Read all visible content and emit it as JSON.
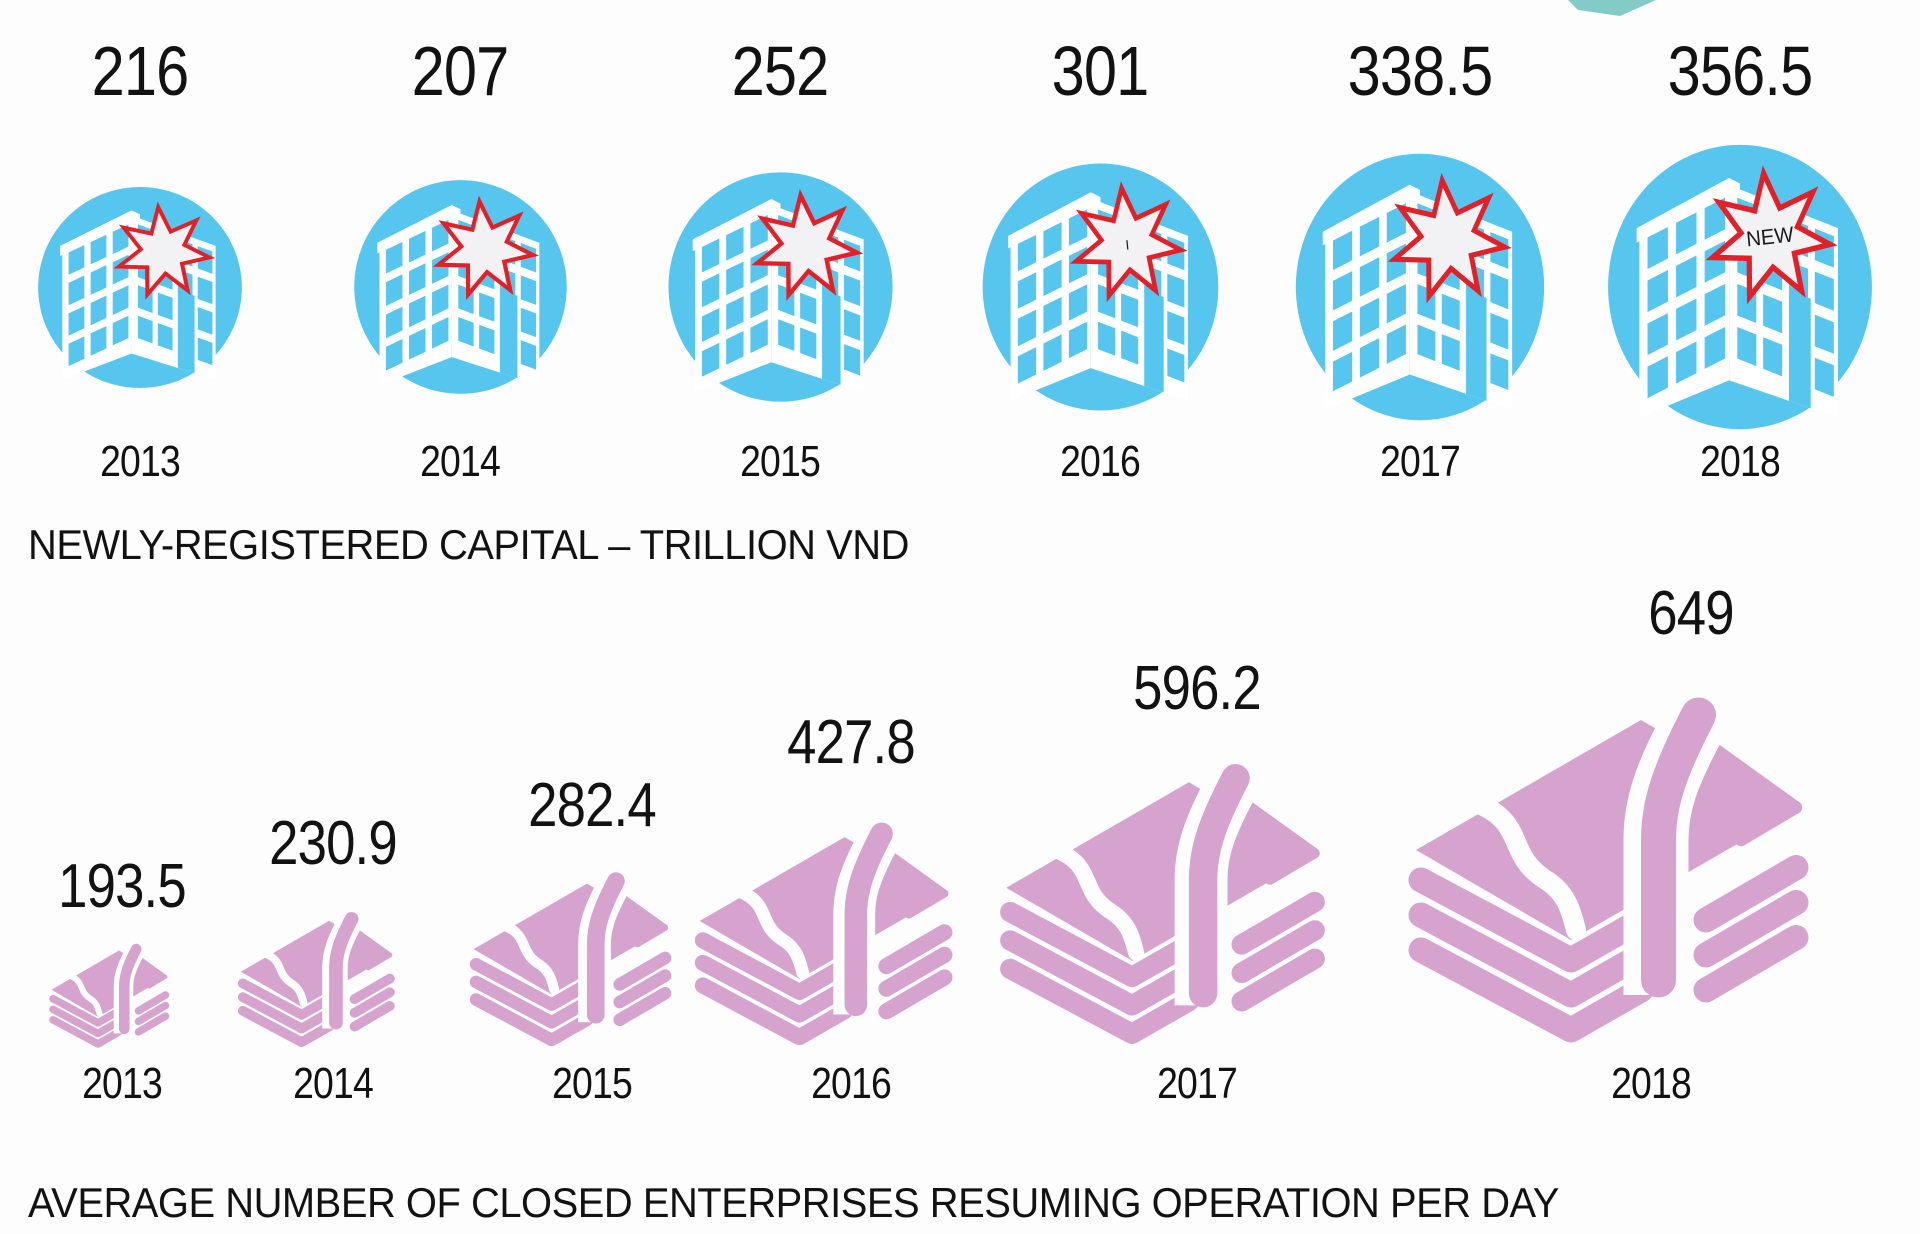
{
  "page": {
    "background": "#fdfdfd"
  },
  "colors": {
    "circle_blue": "#56c6ee",
    "burst_red": "#e32028",
    "burst_fill": "#f2f1f3",
    "money_pink": "#d5a3ce",
    "text": "#121212",
    "teal_decoration": "#82cbc7"
  },
  "top_section": {
    "label": "NEWLY-REGISTERED CAPITAL – TRILLION VND",
    "icon": "building-with-starburst-icon",
    "items": [
      {
        "value": "216",
        "year": "2013",
        "star_text": ""
      },
      {
        "value": "207",
        "year": "2014",
        "star_text": ""
      },
      {
        "value": "252",
        "year": "2015",
        "star_text": ""
      },
      {
        "value": "301",
        "year": "2016",
        "star_text": "I"
      },
      {
        "value": "338.5",
        "year": "2017",
        "star_text": ""
      },
      {
        "value": "356.5",
        "year": "2018",
        "star_text": "NEW"
      }
    ]
  },
  "bottom_section": {
    "label": "AVERAGE NUMBER OF CLOSED ENTERPRISES RESUMING OPERATION PER DAY",
    "icon": "money-stack-icon",
    "items": [
      {
        "value": "193.5",
        "year": "2013"
      },
      {
        "value": "230.9",
        "year": "2014"
      },
      {
        "value": "282.4",
        "year": "2015"
      },
      {
        "value": "427.8",
        "year": "2016"
      },
      {
        "value": "596.2",
        "year": "2017"
      },
      {
        "value": "649",
        "year": "2018"
      }
    ]
  },
  "chart_data": [
    {
      "type": "bar",
      "subtype": "pictogram-buildings-increasing-size",
      "title": "NEWLY-REGISTERED CAPITAL – TRILLION VND",
      "categories": [
        "2013",
        "2014",
        "2015",
        "2016",
        "2017",
        "2018"
      ],
      "values": [
        216,
        207,
        252,
        301,
        338.5,
        356.5
      ],
      "legend_position": "none",
      "grid": false
    },
    {
      "type": "bar",
      "subtype": "pictogram-money-stacks-increasing-size",
      "title": "AVERAGE NUMBER OF CLOSED ENTERPRISES RESUMING OPERATION PER DAY",
      "categories": [
        "2013",
        "2014",
        "2015",
        "2016",
        "2017",
        "2018"
      ],
      "values": [
        193.5,
        230.9,
        282.4,
        427.8,
        596.2,
        649
      ],
      "legend_position": "none",
      "grid": false
    }
  ]
}
